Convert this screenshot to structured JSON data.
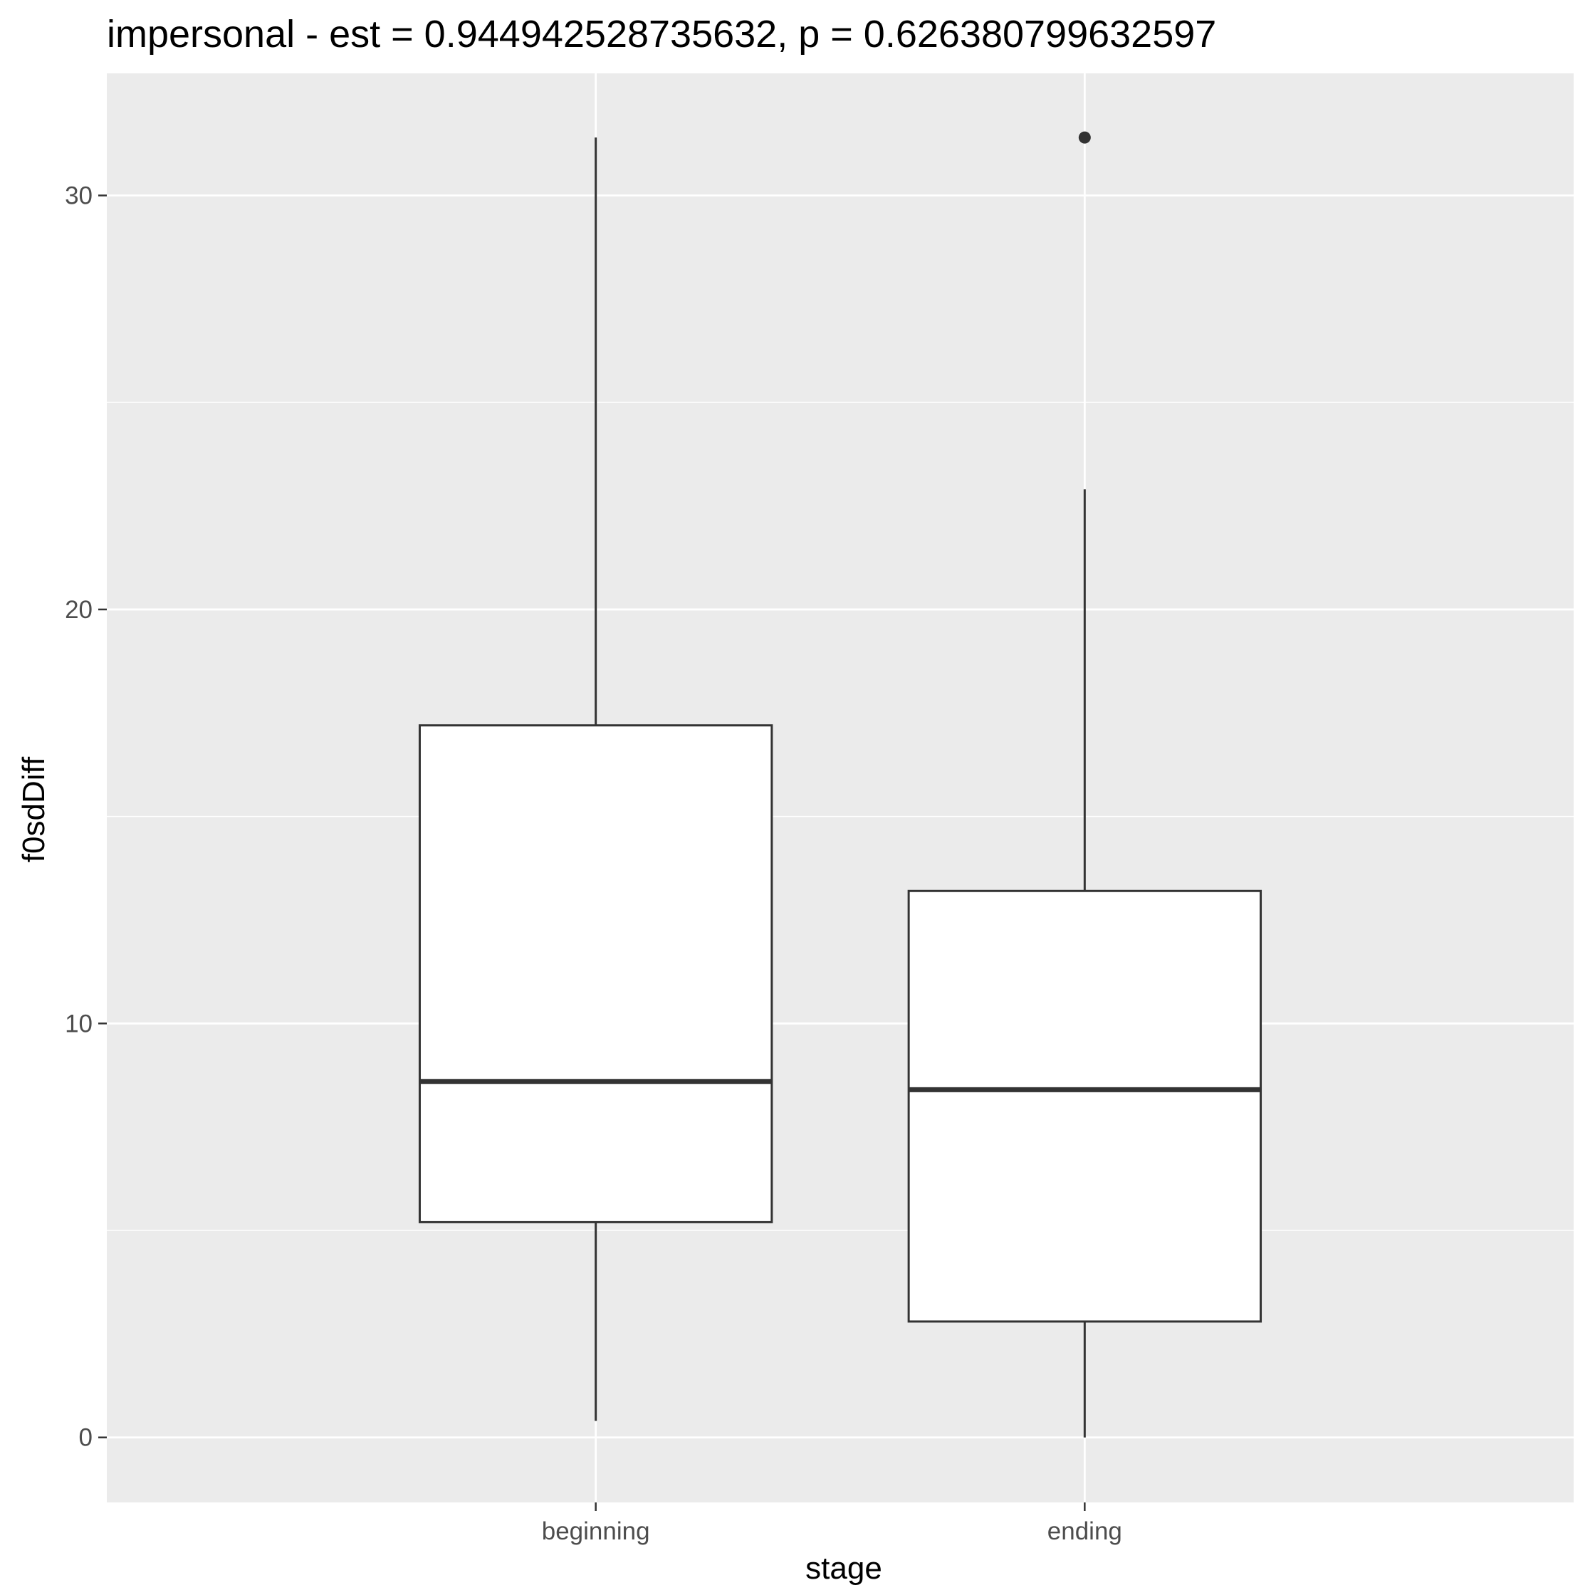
{
  "chart_data": {
    "type": "boxplot",
    "title": "impersonal - est = 0.944942528735632, p = 0.626380799632597",
    "xlabel": "stage",
    "ylabel": "f0sdDiff",
    "categories": [
      "beginning",
      "ending"
    ],
    "boxes": [
      {
        "category": "beginning",
        "whisker_low": 0.4,
        "q1": 5.2,
        "median": 8.6,
        "q3": 17.2,
        "whisker_high": 31.4,
        "outliers": []
      },
      {
        "category": "ending",
        "whisker_low": 0.0,
        "q1": 2.8,
        "median": 8.4,
        "q3": 13.2,
        "whisker_high": 22.9,
        "outliers": [
          31.4
        ]
      }
    ],
    "y_ticks": [
      0,
      10,
      20,
      30
    ],
    "y_tick_labels": [
      "0",
      "10",
      "20",
      "30"
    ],
    "ylim": [
      -1.57,
      32.95
    ],
    "grid": true,
    "legend": "none",
    "colors": {
      "panel_background": "#ebebeb",
      "grid_line": "#ffffff",
      "box_fill": "#ffffff",
      "box_stroke": "#333333",
      "tick_mark": "#333333",
      "tick_label": "#4d4d4d",
      "text": "#000000"
    }
  }
}
